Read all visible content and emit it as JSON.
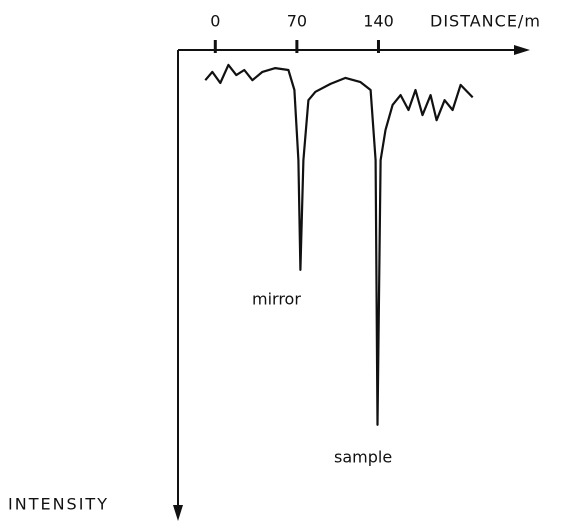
{
  "chart_data": {
    "type": "line",
    "x_label": "DISTANCE/m",
    "y_label": "INTENSITY",
    "x": [
      -8.6,
      -2.6,
      4.3,
      11.2,
      18.0,
      24.9,
      31.8,
      40.4,
      51.5,
      62.7,
      67.9,
      71.3,
      73.0,
      75.6,
      79.9,
      85.9,
      98.8,
      111.7,
      124.6,
      133.2,
      137.5,
      139.2,
      141.8,
      146.0,
      152.1,
      159.0,
      165.8,
      171.8,
      177.8,
      184.7,
      189.9,
      196.7,
      203.6,
      210.5,
      220.8
    ],
    "series": [
      {
        "color": "#111111",
        "values": [
          6.5,
          4.7,
          7.1,
          3.2,
          5.4,
          4.3,
          6.5,
          4.7,
          3.9,
          4.3,
          8.6,
          23.7,
          47.3,
          23.7,
          10.8,
          9.0,
          7.3,
          6.0,
          6.9,
          8.6,
          23.7,
          80.6,
          23.7,
          17.2,
          11.8,
          9.7,
          12.9,
          8.6,
          14.0,
          9.7,
          15.1,
          10.8,
          12.9,
          7.5,
          10.2
        ]
      }
    ],
    "annotations": [
      "mirror",
      "sample"
    ],
    "xlim": [
      -32,
      270
    ],
    "xticks": [
      0,
      70,
      140
    ],
    "ylim": [
      0,
      100
    ],
    "y_inverted": true,
    "x_axis_position": "top"
  }
}
